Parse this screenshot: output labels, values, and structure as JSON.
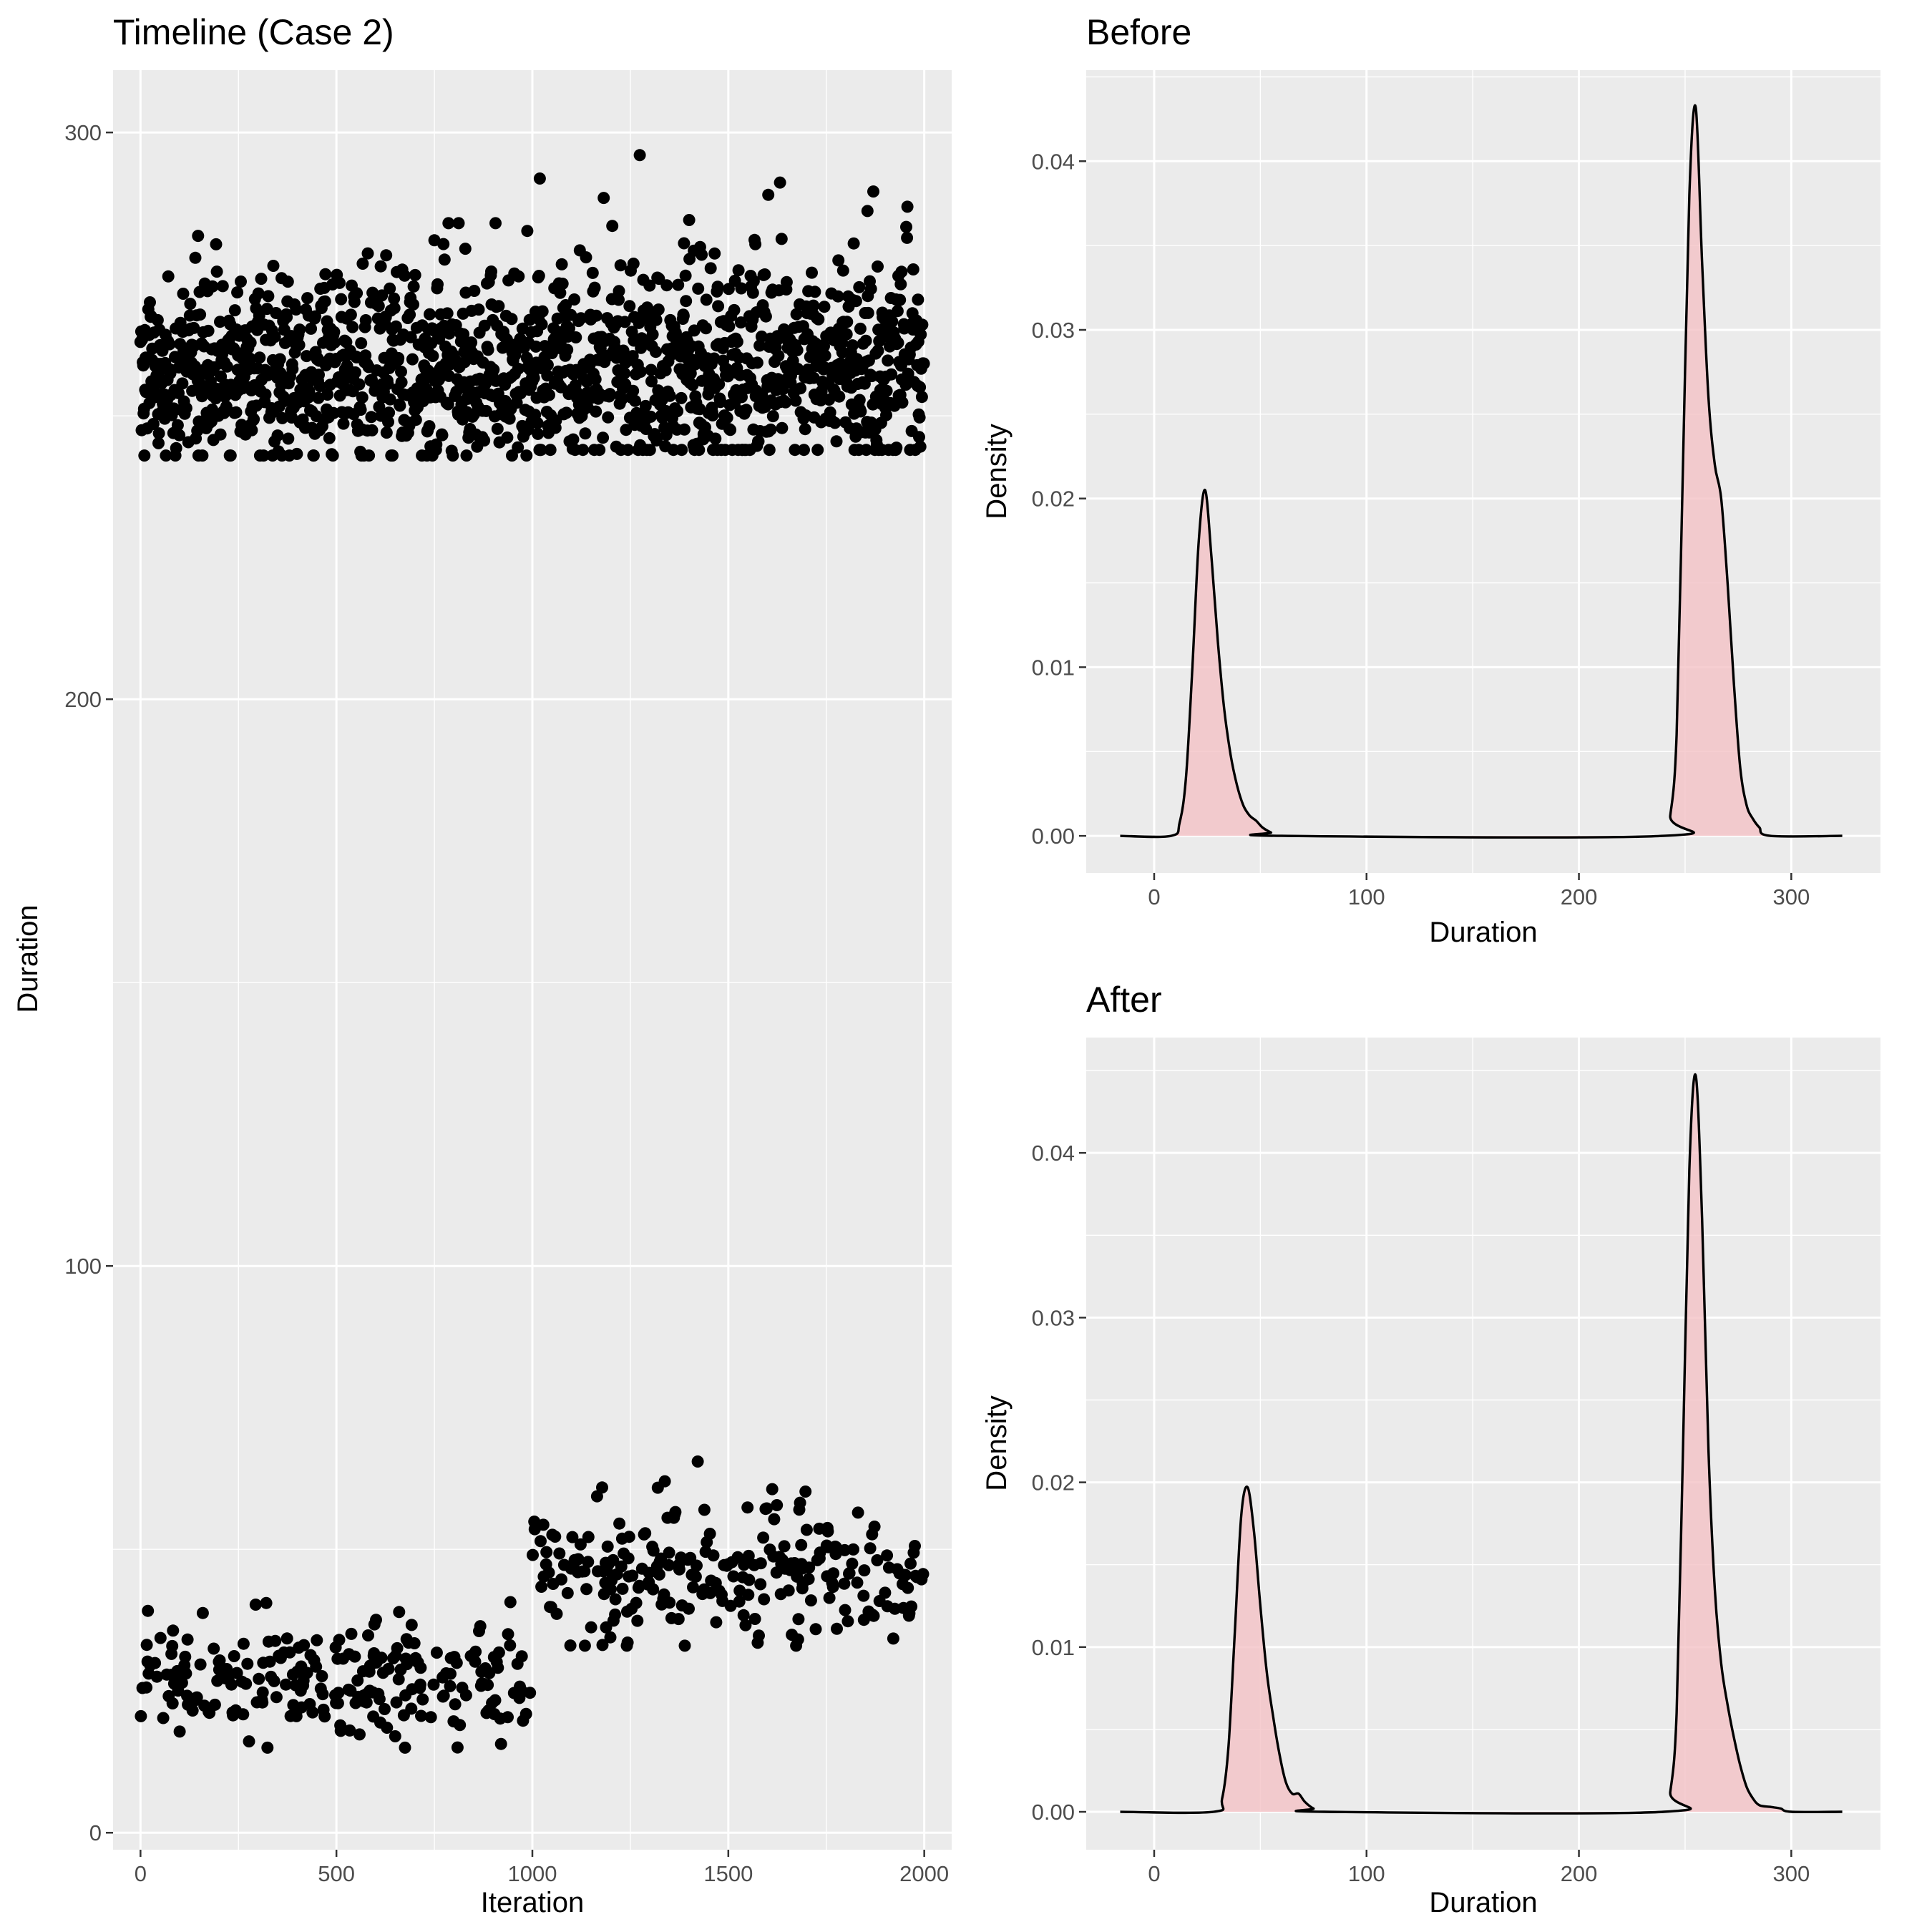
{
  "chart_data": [
    {
      "type": "scatter",
      "title": "Timeline (Case 2)",
      "xlabel": "Iteration",
      "ylabel": "Duration",
      "xlim": [
        -70,
        2070
      ],
      "ylim": [
        -3,
        311
      ],
      "x_ticks": [
        0,
        500,
        1000,
        1500,
        2000
      ],
      "y_ticks": [
        0,
        100,
        200,
        300
      ],
      "grid": true,
      "n_points": 2000,
      "clusters": [
        {
          "x_range": [
            0,
            1000
          ],
          "center": 257,
          "spread": 8,
          "min": 243,
          "max": 284
        },
        {
          "x_range": [
            1000,
            2000
          ],
          "center": 258,
          "spread": 9,
          "min": 244,
          "max": 296
        },
        {
          "x_range": [
            0,
            1000
          ],
          "center": 27,
          "spread": 5,
          "min": 15,
          "max": 56
        },
        {
          "x_range": [
            1000,
            2000
          ],
          "center": 46,
          "spread": 6,
          "min": 33,
          "max": 75
        }
      ]
    },
    {
      "type": "area",
      "title": "Before",
      "xlabel": "Duration",
      "ylabel": "Density",
      "xlim": [
        -32,
        342
      ],
      "ylim": [
        -0.0022,
        0.0454
      ],
      "x_ticks": [
        0,
        100,
        200,
        300
      ],
      "y_ticks": [
        0.0,
        0.01,
        0.02,
        0.03,
        0.04
      ],
      "y_tick_labels": [
        "0.00",
        "0.01",
        "0.02",
        "0.03",
        "0.04"
      ],
      "grid": true,
      "x": [
        -16,
        8,
        12,
        15,
        18,
        21,
        24,
        27,
        30,
        33,
        36,
        39,
        42,
        45,
        48,
        51,
        55,
        60,
        240,
        243,
        246,
        249,
        252,
        255,
        258,
        261,
        264,
        267,
        270,
        273,
        276,
        279,
        282,
        285,
        290,
        324
      ],
      "y": [
        0,
        0,
        0.0008,
        0.0035,
        0.01,
        0.0175,
        0.0205,
        0.0165,
        0.0115,
        0.0075,
        0.0048,
        0.003,
        0.0018,
        0.0012,
        0.0009,
        0.0005,
        0.0002,
        0,
        0,
        0.0012,
        0.006,
        0.022,
        0.038,
        0.0432,
        0.034,
        0.026,
        0.022,
        0.02,
        0.015,
        0.009,
        0.004,
        0.0018,
        0.001,
        0.0005,
        0,
        0
      ]
    },
    {
      "type": "area",
      "title": "After",
      "xlabel": "Duration",
      "ylabel": "Density",
      "xlim": [
        -32,
        342
      ],
      "ylim": [
        -0.0023,
        0.047
      ],
      "x_ticks": [
        0,
        100,
        200,
        300
      ],
      "y_ticks": [
        0.0,
        0.01,
        0.02,
        0.03,
        0.04
      ],
      "y_tick_labels": [
        "0.00",
        "0.01",
        "0.02",
        "0.03",
        "0.04"
      ],
      "grid": true,
      "x": [
        -16,
        28,
        32,
        35,
        38,
        41,
        44,
        47,
        50,
        53,
        56,
        59,
        62,
        65,
        68,
        71,
        75,
        80,
        240,
        243,
        246,
        249,
        252,
        255,
        258,
        261,
        264,
        267,
        270,
        273,
        276,
        279,
        282,
        285,
        290,
        295,
        300,
        324
      ],
      "y": [
        0,
        0,
        0.0008,
        0.004,
        0.011,
        0.018,
        0.0197,
        0.017,
        0.0125,
        0.0085,
        0.0058,
        0.0035,
        0.0018,
        0.0011,
        0.0011,
        0.0006,
        0.0002,
        0,
        0,
        0.0012,
        0.006,
        0.022,
        0.039,
        0.0447,
        0.036,
        0.022,
        0.0135,
        0.009,
        0.0065,
        0.0045,
        0.0028,
        0.0015,
        0.0008,
        0.0004,
        0.0003,
        0.0002,
        0,
        0
      ]
    }
  ]
}
